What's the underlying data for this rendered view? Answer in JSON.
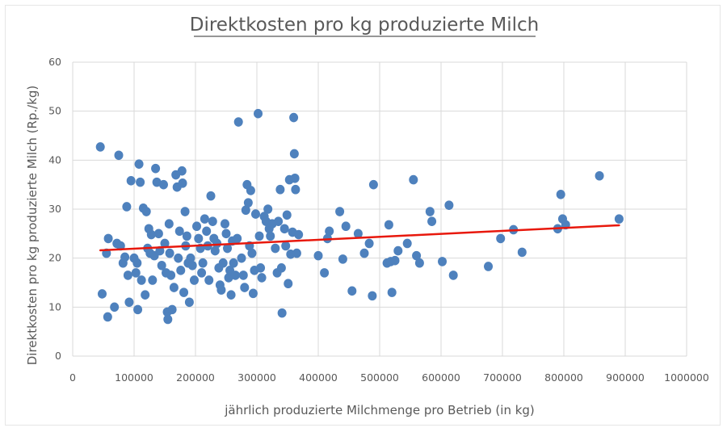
{
  "chart_data": {
    "type": "scatter",
    "title": "Direktkosten pro kg produzierte Milch",
    "xlabel": "jährlich produzierte Milchmenge pro Betrieb (in kg)",
    "ylabel": "Direktkosten pro kg produzierte Milch (Rp./kg)",
    "xlim": [
      0,
      1000000
    ],
    "ylim": [
      0,
      60
    ],
    "xticks": [
      0,
      100000,
      200000,
      300000,
      400000,
      500000,
      600000,
      700000,
      800000,
      900000,
      1000000
    ],
    "xtick_labels": [
      "0",
      "100000",
      "200000",
      "300000",
      "400000",
      "500000",
      "600000",
      "700000",
      "800000",
      "900000",
      "1000000"
    ],
    "yticks": [
      0,
      10,
      20,
      30,
      40,
      50,
      60
    ],
    "ytick_labels": [
      "0",
      "10",
      "20",
      "30",
      "40",
      "50",
      "60"
    ],
    "grid": true,
    "legend": "none",
    "colors": {
      "points": "#4e81bd",
      "trendline": "#e8180c",
      "grid": "#d9d9d9",
      "text": "#595959"
    },
    "series": [
      {
        "points": [
          [
            45000,
            42.7
          ],
          [
            48000,
            12.7
          ],
          [
            55000,
            21
          ],
          [
            57000,
            8
          ],
          [
            58000,
            24
          ],
          [
            68000,
            10
          ],
          [
            72000,
            23
          ],
          [
            75000,
            41
          ],
          [
            78000,
            22.5
          ],
          [
            82000,
            19
          ],
          [
            85000,
            20.2
          ],
          [
            88000,
            30.5
          ],
          [
            90000,
            16.5
          ],
          [
            92000,
            11
          ],
          [
            95000,
            35.8
          ],
          [
            100000,
            20
          ],
          [
            103000,
            17
          ],
          [
            105000,
            19
          ],
          [
            106000,
            9.5
          ],
          [
            108000,
            39.2
          ],
          [
            110000,
            35.5
          ],
          [
            112000,
            15.5
          ],
          [
            115000,
            30.2
          ],
          [
            118000,
            12.5
          ],
          [
            120000,
            29.5
          ],
          [
            122000,
            22
          ],
          [
            124000,
            26
          ],
          [
            126000,
            21
          ],
          [
            128000,
            24.8
          ],
          [
            130000,
            15.5
          ],
          [
            133000,
            20.5
          ],
          [
            135000,
            38.3
          ],
          [
            137000,
            35.5
          ],
          [
            140000,
            25
          ],
          [
            142000,
            21.5
          ],
          [
            145000,
            18.5
          ],
          [
            148000,
            35
          ],
          [
            150000,
            23
          ],
          [
            152000,
            17
          ],
          [
            154000,
            9
          ],
          [
            155000,
            7.5
          ],
          [
            157000,
            27
          ],
          [
            158000,
            21
          ],
          [
            160000,
            16.5
          ],
          [
            162000,
            9.5
          ],
          [
            165000,
            14
          ],
          [
            168000,
            37
          ],
          [
            170000,
            34.5
          ],
          [
            172000,
            20
          ],
          [
            174000,
            25.5
          ],
          [
            176000,
            17.5
          ],
          [
            178000,
            37.8
          ],
          [
            179000,
            35.3
          ],
          [
            181000,
            13
          ],
          [
            183000,
            29.5
          ],
          [
            184000,
            22.5
          ],
          [
            186000,
            24.5
          ],
          [
            188000,
            19
          ],
          [
            190000,
            11
          ],
          [
            192000,
            20
          ],
          [
            195000,
            18.5
          ],
          [
            198000,
            15.5
          ],
          [
            202000,
            26.5
          ],
          [
            205000,
            24
          ],
          [
            208000,
            22
          ],
          [
            210000,
            17
          ],
          [
            212000,
            19
          ],
          [
            215000,
            28
          ],
          [
            218000,
            25.5
          ],
          [
            220000,
            22.5
          ],
          [
            222000,
            15.5
          ],
          [
            225000,
            32.7
          ],
          [
            228000,
            27.5
          ],
          [
            230000,
            24
          ],
          [
            232000,
            21.5
          ],
          [
            235000,
            23
          ],
          [
            238000,
            18
          ],
          [
            240000,
            14.5
          ],
          [
            242000,
            13.5
          ],
          [
            245000,
            19
          ],
          [
            248000,
            27
          ],
          [
            250000,
            25
          ],
          [
            252000,
            22
          ],
          [
            254000,
            16
          ],
          [
            256000,
            17.5
          ],
          [
            258000,
            12.5
          ],
          [
            260000,
            23.5
          ],
          [
            262000,
            19
          ],
          [
            265000,
            16.5
          ],
          [
            268000,
            24
          ],
          [
            270000,
            47.8
          ],
          [
            275000,
            20
          ],
          [
            278000,
            16.5
          ],
          [
            280000,
            14
          ],
          [
            282000,
            29.8
          ],
          [
            284000,
            35
          ],
          [
            286000,
            31.3
          ],
          [
            288000,
            22.5
          ],
          [
            290000,
            33.8
          ],
          [
            292000,
            21
          ],
          [
            294000,
            12.8
          ],
          [
            296000,
            17.5
          ],
          [
            298000,
            29
          ],
          [
            302000,
            49.5
          ],
          [
            304000,
            24.5
          ],
          [
            306000,
            18
          ],
          [
            308000,
            16
          ],
          [
            312000,
            28.5
          ],
          [
            315000,
            27.5
          ],
          [
            318000,
            30
          ],
          [
            320000,
            26
          ],
          [
            322000,
            24.5
          ],
          [
            325000,
            27
          ],
          [
            330000,
            22
          ],
          [
            333000,
            17
          ],
          [
            335000,
            27.5
          ],
          [
            338000,
            34
          ],
          [
            340000,
            18
          ],
          [
            341000,
            8.8
          ],
          [
            345000,
            26
          ],
          [
            347000,
            22.5
          ],
          [
            349000,
            28.8
          ],
          [
            351000,
            14.8
          ],
          [
            353000,
            36
          ],
          [
            355000,
            20.8
          ],
          [
            358000,
            25.3
          ],
          [
            360000,
            48.7
          ],
          [
            361000,
            41.3
          ],
          [
            362000,
            36.3
          ],
          [
            363000,
            34
          ],
          [
            365000,
            21
          ],
          [
            368000,
            24.8
          ],
          [
            400000,
            20.5
          ],
          [
            410000,
            17
          ],
          [
            415000,
            24
          ],
          [
            418000,
            25.5
          ],
          [
            435000,
            29.5
          ],
          [
            440000,
            19.8
          ],
          [
            445000,
            26.5
          ],
          [
            455000,
            13.3
          ],
          [
            465000,
            25
          ],
          [
            475000,
            21
          ],
          [
            483000,
            23
          ],
          [
            488000,
            12.3
          ],
          [
            490000,
            35
          ],
          [
            512000,
            19
          ],
          [
            515000,
            26.8
          ],
          [
            518000,
            19.3
          ],
          [
            520000,
            13
          ],
          [
            525000,
            19.5
          ],
          [
            530000,
            21.5
          ],
          [
            545000,
            23
          ],
          [
            555000,
            36
          ],
          [
            560000,
            20.5
          ],
          [
            565000,
            19
          ],
          [
            582000,
            29.5
          ],
          [
            585000,
            27.5
          ],
          [
            602000,
            19.3
          ],
          [
            613000,
            30.8
          ],
          [
            620000,
            16.5
          ],
          [
            677000,
            18.3
          ],
          [
            697000,
            24
          ],
          [
            718000,
            25.8
          ],
          [
            732000,
            21.2
          ],
          [
            790000,
            26
          ],
          [
            795000,
            33
          ],
          [
            798000,
            28
          ],
          [
            803000,
            26.8
          ],
          [
            858000,
            36.8
          ],
          [
            890000,
            28
          ]
        ]
      }
    ],
    "trendline": {
      "type": "linear",
      "x": [
        45000,
        890000
      ],
      "y": [
        21.6,
        26.7
      ]
    }
  }
}
